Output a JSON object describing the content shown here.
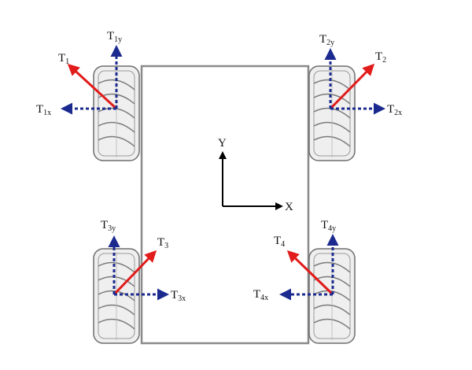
{
  "diagram": {
    "axes": {
      "x_label": "X",
      "y_label": "Y"
    },
    "forces": [
      {
        "id": "t1",
        "label": "T",
        "sub": "1",
        "x_label": "T",
        "x_sub": "1x",
        "y_label": "T",
        "y_sub": "1y"
      },
      {
        "id": "t2",
        "label": "T",
        "sub": "2",
        "x_label": "T",
        "x_sub": "2x",
        "y_label": "T",
        "y_sub": "2y"
      },
      {
        "id": "t3",
        "label": "T",
        "sub": "3",
        "x_label": "T",
        "x_sub": "3x",
        "y_label": "T",
        "y_sub": "3y"
      },
      {
        "id": "t4",
        "label": "T",
        "sub": "4",
        "x_label": "T",
        "x_sub": "4x",
        "y_label": "T",
        "y_sub": "4y"
      }
    ],
    "colors": {
      "resultant": "#e21b1b",
      "component": "#1b2a8f",
      "axis": "#000000",
      "frame": "#8a8a8a",
      "wheel_outline": "#6f6f6f",
      "wheel_fill": "#efefef"
    },
    "wheel_icon": "mecanum-wheel-icon"
  }
}
